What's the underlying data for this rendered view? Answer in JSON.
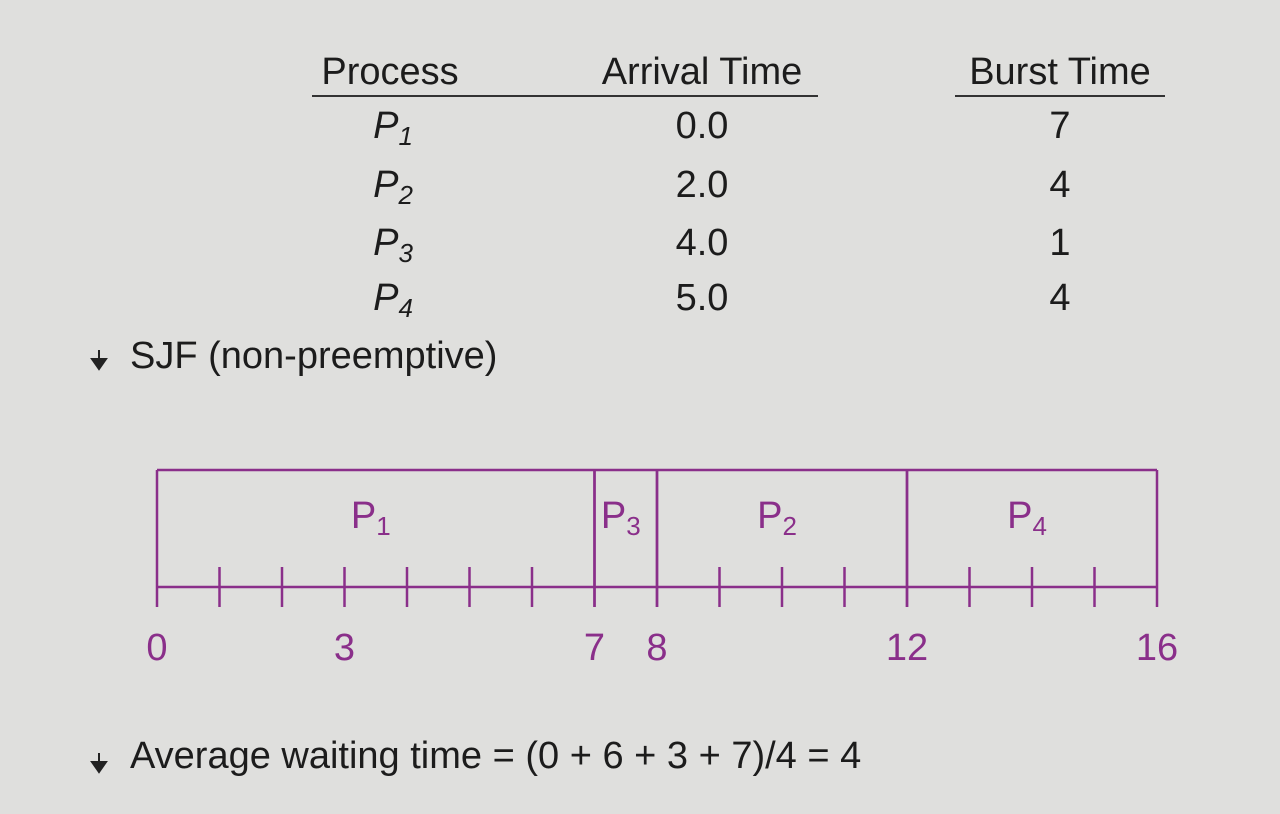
{
  "table": {
    "header": [
      "Process",
      "Arrival Time",
      "Burst Time"
    ],
    "rows": [
      [
        {
          "name": "P",
          "sub": "1"
        },
        "0.0",
        7
      ],
      [
        {
          "name": "P",
          "sub": "2"
        },
        "2.0",
        4
      ],
      [
        {
          "name": "P",
          "sub": "3"
        },
        "4.0",
        1
      ],
      [
        {
          "name": "P",
          "sub": "4"
        },
        "5.0",
        4
      ]
    ]
  },
  "bullets": [
    "SJF (non-preemptive)",
    "Average waiting time = (0 + 6 + 3 + 7)/4 = 4"
  ],
  "gantt": {
    "xlim": [
      0,
      16
    ],
    "ticks": [
      0,
      3,
      7,
      8,
      12,
      16
    ],
    "segments": [
      {
        "name": "P",
        "sub": "1",
        "start": 0,
        "end": 7
      },
      {
        "name": "P",
        "sub": "3",
        "start": 7,
        "end": 8
      },
      {
        "name": "P",
        "sub": "2",
        "start": 8,
        "end": 12
      },
      {
        "name": "P",
        "sub": "4",
        "start": 12,
        "end": 16
      }
    ]
  }
}
